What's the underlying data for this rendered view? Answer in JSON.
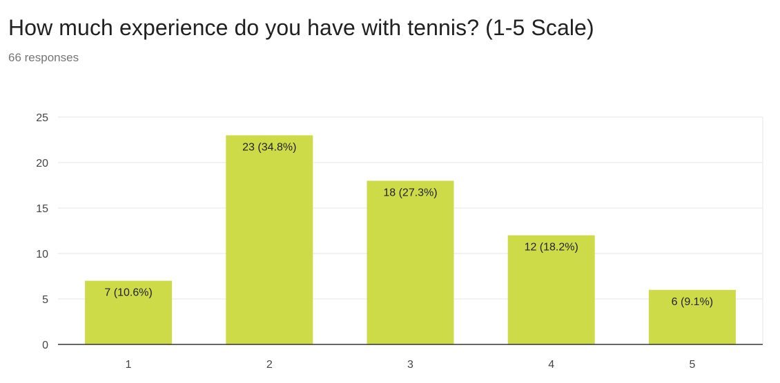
{
  "form": {
    "question": "How much experience do you have with tennis? (1-5 Scale)",
    "responses": "66 responses"
  },
  "colors": {
    "bar": "#cddb48",
    "grid": "#e6e6e6",
    "axis": "#333333"
  },
  "chart_data": {
    "type": "bar",
    "title": "",
    "xlabel": "",
    "ylabel": "",
    "categories": [
      "1",
      "2",
      "3",
      "4",
      "5"
    ],
    "values": [
      7,
      23,
      18,
      12,
      6
    ],
    "data_labels": [
      "7 (10.6%)",
      "23 (34.8%)",
      "18 (27.3%)",
      "12 (18.2%)",
      "6 (9.1%)"
    ],
    "ylim": [
      0,
      25
    ],
    "yticks": [
      0,
      5,
      10,
      15,
      20,
      25
    ],
    "grid": true,
    "legend": "none"
  }
}
